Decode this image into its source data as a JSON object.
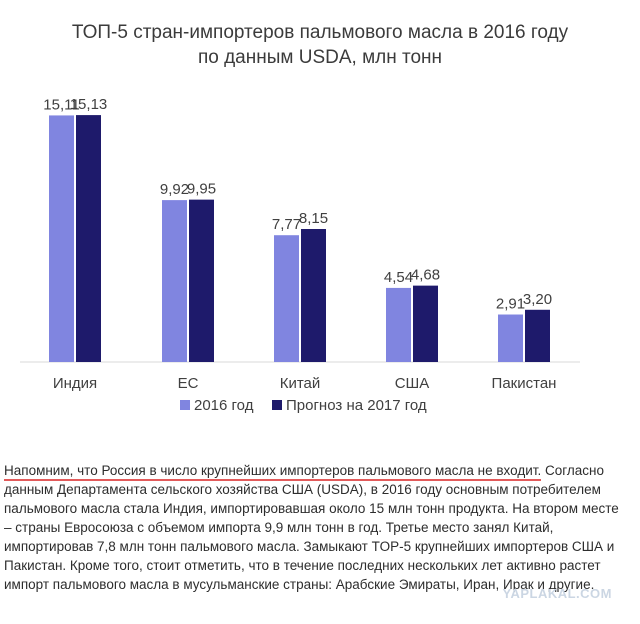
{
  "chart_data": {
    "type": "bar",
    "title_line1": "ТОП-5 стран-импортеров пальмового масла в 2016 году",
    "title_line2": "по данным USDA, млн тонн",
    "categories": [
      "Индия",
      "ЕС",
      "Китай",
      "США",
      "Пакистан"
    ],
    "series": [
      {
        "name": "2016 год",
        "values": [
          15.11,
          9.92,
          7.77,
          4.54,
          2.91
        ],
        "labels": [
          "15,11",
          "9,92",
          "7,77",
          "4,54",
          "2,91"
        ],
        "color": "#8085e0"
      },
      {
        "name": "Прогноз на 2017 год",
        "values": [
          15.13,
          9.95,
          8.15,
          4.68,
          3.2
        ],
        "labels": [
          "15,13",
          "9,95",
          "8,15",
          "4,68",
          "3,20"
        ],
        "color": "#1e1a6b"
      }
    ],
    "ylim": [
      0,
      16.3
    ],
    "legend": "bottom"
  },
  "article": {
    "lead": "Напомним, что Россия в число крупнейших импортеров пальмового масла не входит.",
    "body": "Согласно данным Департамента сельского хозяйства США (USDA), в 2016 году основным потребителем пальмового масла стала Индия, импортировавшая около 15 млн тонн продукта. На втором месте – страны Евросоюза с объемом импорта 9,9 млн тонн в год. Третье место занял Китай, импортировав 7,8 млн тонн пальмового масла. Замыкают TOP-5 крупнейших импортеров США и Пакистан. Кроме того, стоит отметить, что в течение последних нескольких лет активно растет импорт пальмового масла в мусульманские страны: Арабские Эмираты, Иран, Ирак и другие."
  },
  "watermark": "YAPLAKAL.COM"
}
